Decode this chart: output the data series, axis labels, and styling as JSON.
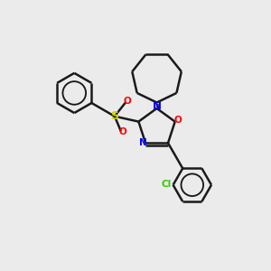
{
  "bg_color": "#ebebeb",
  "bond_color": "#1a1a1a",
  "N_color": "#0000ff",
  "O_color": "#ff0000",
  "S_color": "#cccc00",
  "Cl_color": "#33cc00",
  "line_width": 1.8,
  "figsize": [
    3.0,
    3.0
  ],
  "dpi": 100,
  "xlim": [
    0,
    10
  ],
  "ylim": [
    0,
    10
  ]
}
